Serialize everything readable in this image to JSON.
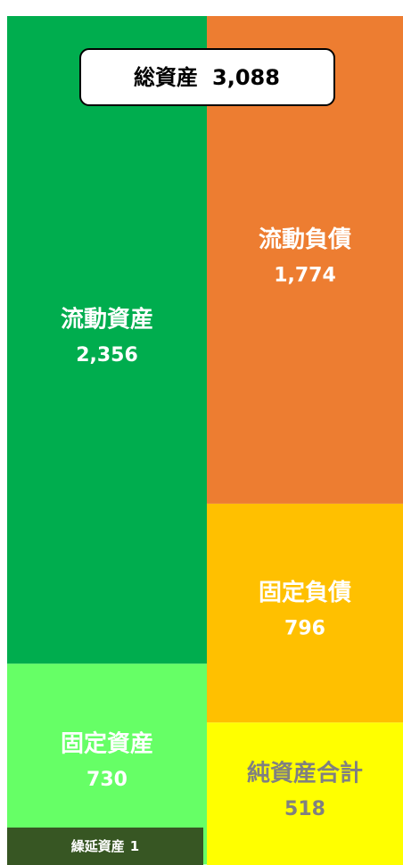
{
  "chart_data": {
    "type": "stacked-bar",
    "total": {
      "label": "総資産",
      "value": 3088,
      "value_label": "3,088"
    },
    "columns": [
      {
        "segments": [
          {
            "name": "流動資産",
            "value": 2356,
            "value_label": "2,356",
            "color": "#00ad4e",
            "text_color": "#ffffff"
          },
          {
            "name": "固定資産",
            "value": 730,
            "color": "#66ff66",
            "text_color": "#ffffff"
          },
          {
            "name": "繰延資産",
            "value": 1,
            "color": "#375623",
            "text_color": "#ffffff"
          }
        ]
      },
      {
        "segments": [
          {
            "name": "流動負債",
            "value": 1774,
            "value_label": "1,774",
            "color": "#ed7d31",
            "text_color": "#ffffff"
          },
          {
            "name": "固定負債",
            "value": 796,
            "color": "#ffc000",
            "text_color": "#ffffff"
          },
          {
            "name": "純資産合計",
            "value": 518,
            "color": "#ffff00",
            "text_color": "#808080"
          }
        ]
      }
    ]
  }
}
